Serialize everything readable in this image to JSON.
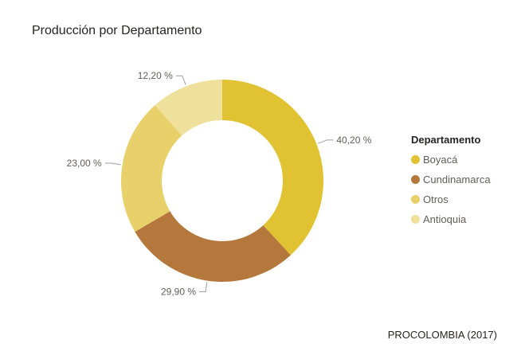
{
  "title": "Producción por Departamento",
  "source": "PROCOLOMBIA (2017)",
  "legend": {
    "title": "Departamento"
  },
  "chart_data": {
    "type": "pie",
    "donut": true,
    "title": "Producción por Departamento",
    "legend_title": "Departamento",
    "legend_position": "right",
    "series": [
      {
        "name": "Boyacá",
        "value": 40.2,
        "label": "40,20 %",
        "color": "#e1c233"
      },
      {
        "name": "Cundinamarca",
        "value": 29.9,
        "label": "29,90 %",
        "color": "#b5783c"
      },
      {
        "name": "Otros",
        "value": 23.0,
        "label": "23,00 %",
        "color": "#e8d06a"
      },
      {
        "name": "Antioquia",
        "value": 12.2,
        "label": "12,20 %",
        "color": "#efe09b"
      }
    ]
  }
}
